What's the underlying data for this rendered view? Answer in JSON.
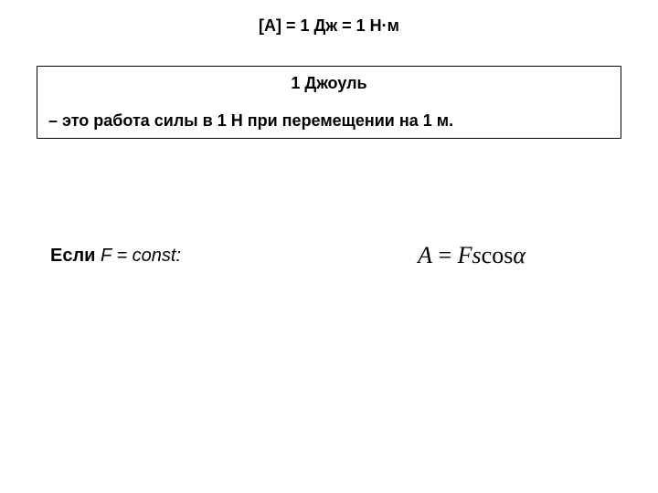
{
  "equation_line": "[A] = 1 Дж = 1 Н·м",
  "definition": {
    "title": "1 Джоуль",
    "text": "– это работа силы в 1 Н при перемещении на 1 м."
  },
  "condition": {
    "label_prefix": "Если ",
    "label_italic": "F = const:",
    "formula_A": "A",
    "formula_eq": " = ",
    "formula_Fs": "Fs",
    "formula_cos": "cos",
    "formula_alpha": "α"
  },
  "colors": {
    "background": "#ffffff",
    "text": "#000000",
    "border": "#000000"
  },
  "typography": {
    "body_font": "Arial, sans-serif",
    "formula_font": "Times New Roman, serif",
    "equation_fontsize": 18,
    "definition_fontsize": 18,
    "condition_fontsize": 20,
    "formula_fontsize": 26
  }
}
